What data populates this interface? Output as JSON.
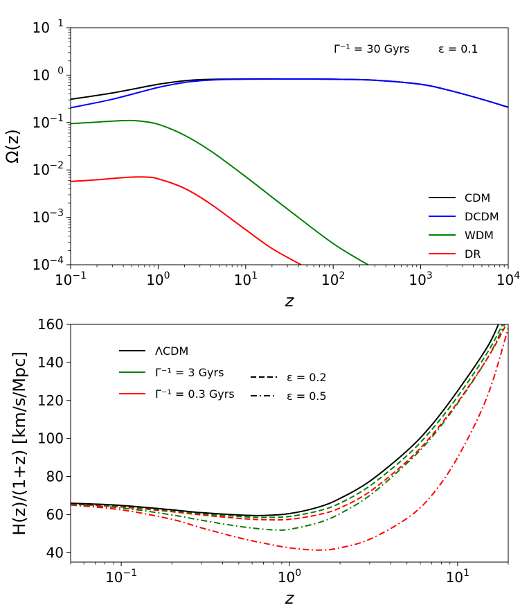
{
  "chart_data": [
    {
      "type": "line",
      "xscale": "log",
      "yscale": "log",
      "xlim": [
        0.1,
        10000
      ],
      "ylim": [
        0.0001,
        10
      ],
      "xlabel": "z",
      "ylabel": "Ω(z)",
      "annotation": {
        "gamma": "Γ⁻¹ = 30 Gyrs",
        "epsilon": "ε = 0.1"
      },
      "x_ticks": [
        {
          "base": "10",
          "exp": "−1"
        },
        {
          "base": "10",
          "exp": "0"
        },
        {
          "base": "10",
          "exp": "1"
        },
        {
          "base": "10",
          "exp": "2"
        },
        {
          "base": "10",
          "exp": "3"
        },
        {
          "base": "10",
          "exp": "4"
        }
      ],
      "y_ticks": [
        {
          "base": "10",
          "exp": "−4"
        },
        {
          "base": "10",
          "exp": "−3"
        },
        {
          "base": "10",
          "exp": "−2"
        },
        {
          "base": "10",
          "exp": "−1"
        },
        {
          "base": "10",
          "exp": "0"
        },
        {
          "base": "10",
          "exp": "1"
        }
      ],
      "legend_position": "lower-right",
      "series": [
        {
          "name": "CDM",
          "color": "#000000",
          "style": "solid",
          "x": [
            0.1,
            0.3,
            1,
            2,
            3,
            5,
            10,
            30,
            100,
            300,
            1000,
            2000,
            5000,
            10000
          ],
          "y": [
            0.31,
            0.42,
            0.64,
            0.76,
            0.8,
            0.82,
            0.83,
            0.83,
            0.82,
            0.78,
            0.64,
            0.49,
            0.31,
            0.21
          ]
        },
        {
          "name": "DCDM",
          "color": "#0000ff",
          "style": "solid",
          "x": [
            0.1,
            0.3,
            1,
            2,
            3,
            5,
            10,
            30,
            100,
            300,
            1000,
            2000,
            5000,
            10000
          ],
          "y": [
            0.205,
            0.31,
            0.55,
            0.7,
            0.76,
            0.8,
            0.82,
            0.83,
            0.82,
            0.78,
            0.64,
            0.49,
            0.31,
            0.21
          ]
        },
        {
          "name": "WDM",
          "color": "#008000",
          "style": "solid",
          "x": [
            0.1,
            0.2,
            0.4,
            0.6,
            1,
            2,
            4,
            10,
            30,
            100,
            250
          ],
          "y": [
            0.095,
            0.102,
            0.11,
            0.108,
            0.092,
            0.054,
            0.025,
            0.0072,
            0.0015,
            0.00028,
            0.0001
          ]
        },
        {
          "name": "DR",
          "color": "#ff0000",
          "style": "solid",
          "x": [
            0.1,
            0.2,
            0.4,
            0.7,
            1,
            2,
            4,
            10,
            20,
            43
          ],
          "y": [
            0.0057,
            0.0062,
            0.0069,
            0.0071,
            0.0065,
            0.0041,
            0.0019,
            0.00055,
            0.00022,
            0.0001
          ]
        }
      ]
    },
    {
      "type": "line",
      "xscale": "log",
      "yscale": "linear",
      "xlim": [
        0.05,
        20
      ],
      "ylim": [
        35,
        160
      ],
      "xlabel": "z",
      "ylabel": "H(z)/(1+z)   [km/s/Mpc]",
      "x_ticks": [
        {
          "base": "10",
          "exp": "−1"
        },
        {
          "base": "10",
          "exp": "0"
        },
        {
          "base": "10",
          "exp": "1"
        }
      ],
      "y_ticks": [
        "40",
        "60",
        "80",
        "100",
        "120",
        "140",
        "160"
      ],
      "legend": {
        "colors": [
          {
            "label": "ΛCDM",
            "color": "#000000"
          },
          {
            "label": "Γ⁻¹ = 3 Gyrs",
            "color": "#008000"
          },
          {
            "label": "Γ⁻¹ = 0.3 Gyrs",
            "color": "#ff0000"
          }
        ],
        "styles": [
          {
            "label": "ε = 0.2",
            "style": "dashed"
          },
          {
            "label": "ε = 0.5",
            "style": "dashdot"
          }
        ]
      },
      "series": [
        {
          "name": "ΛCDM",
          "color": "#000000",
          "style": "solid",
          "x": [
            0.05,
            0.1,
            0.2,
            0.3,
            0.5,
            0.7,
            1,
            1.5,
            2,
            3,
            5,
            7,
            10,
            15,
            17.5
          ],
          "y": [
            66.0,
            64.8,
            62.5,
            61.0,
            59.8,
            59.5,
            60.5,
            64.0,
            68.5,
            77.5,
            93.5,
            107.0,
            125.0,
            148.0,
            160.0
          ]
        },
        {
          "name": "Γ⁻¹=3 Gyrs, ε=0.2",
          "color": "#008000",
          "style": "dashed",
          "x": [
            0.05,
            0.1,
            0.2,
            0.3,
            0.5,
            0.7,
            1,
            1.5,
            2,
            3,
            5,
            7,
            10,
            15,
            18.5
          ],
          "y": [
            65.8,
            64.5,
            62.0,
            60.4,
            59.0,
            58.5,
            59.0,
            62.0,
            66.0,
            75.0,
            91.0,
            104.5,
            122.0,
            145.0,
            160.0
          ]
        },
        {
          "name": "Γ⁻¹=0.3 Gyrs, ε=0.2",
          "color": "#ff0000",
          "style": "dashed",
          "x": [
            0.05,
            0.1,
            0.2,
            0.3,
            0.5,
            0.7,
            1,
            1.5,
            2,
            3,
            5,
            7,
            10,
            15,
            19.5
          ],
          "y": [
            65.5,
            64.0,
            61.5,
            59.8,
            58.0,
            57.3,
            57.5,
            60.0,
            63.5,
            72.0,
            88.0,
            101.5,
            119.0,
            142.0,
            160.0
          ]
        },
        {
          "name": "Γ⁻¹=3 Gyrs, ε=0.5",
          "color": "#008000",
          "style": "dashdot",
          "x": [
            0.05,
            0.1,
            0.2,
            0.3,
            0.5,
            0.7,
            0.85,
            1,
            1.5,
            2,
            3,
            5,
            7,
            10,
            15,
            19
          ],
          "y": [
            65.3,
            63.5,
            59.8,
            57.0,
            53.8,
            52.3,
            51.9,
            52.2,
            55.8,
            60.5,
            70.0,
            87.0,
            100.5,
            118.5,
            142.0,
            160.0
          ]
        },
        {
          "name": "Γ⁻¹=0.3 Gyrs, ε=0.5",
          "color": "#ff0000",
          "style": "dashdot",
          "x": [
            0.05,
            0.1,
            0.2,
            0.3,
            0.5,
            0.7,
            1,
            1.5,
            2,
            3,
            5,
            7,
            10,
            15,
            20
          ],
          "y": [
            65.0,
            62.5,
            57.5,
            53.0,
            47.8,
            45.0,
            42.5,
            41.3,
            42.5,
            47.0,
            58.0,
            70.0,
            90.0,
            122.0,
            158.0
          ]
        }
      ]
    }
  ]
}
